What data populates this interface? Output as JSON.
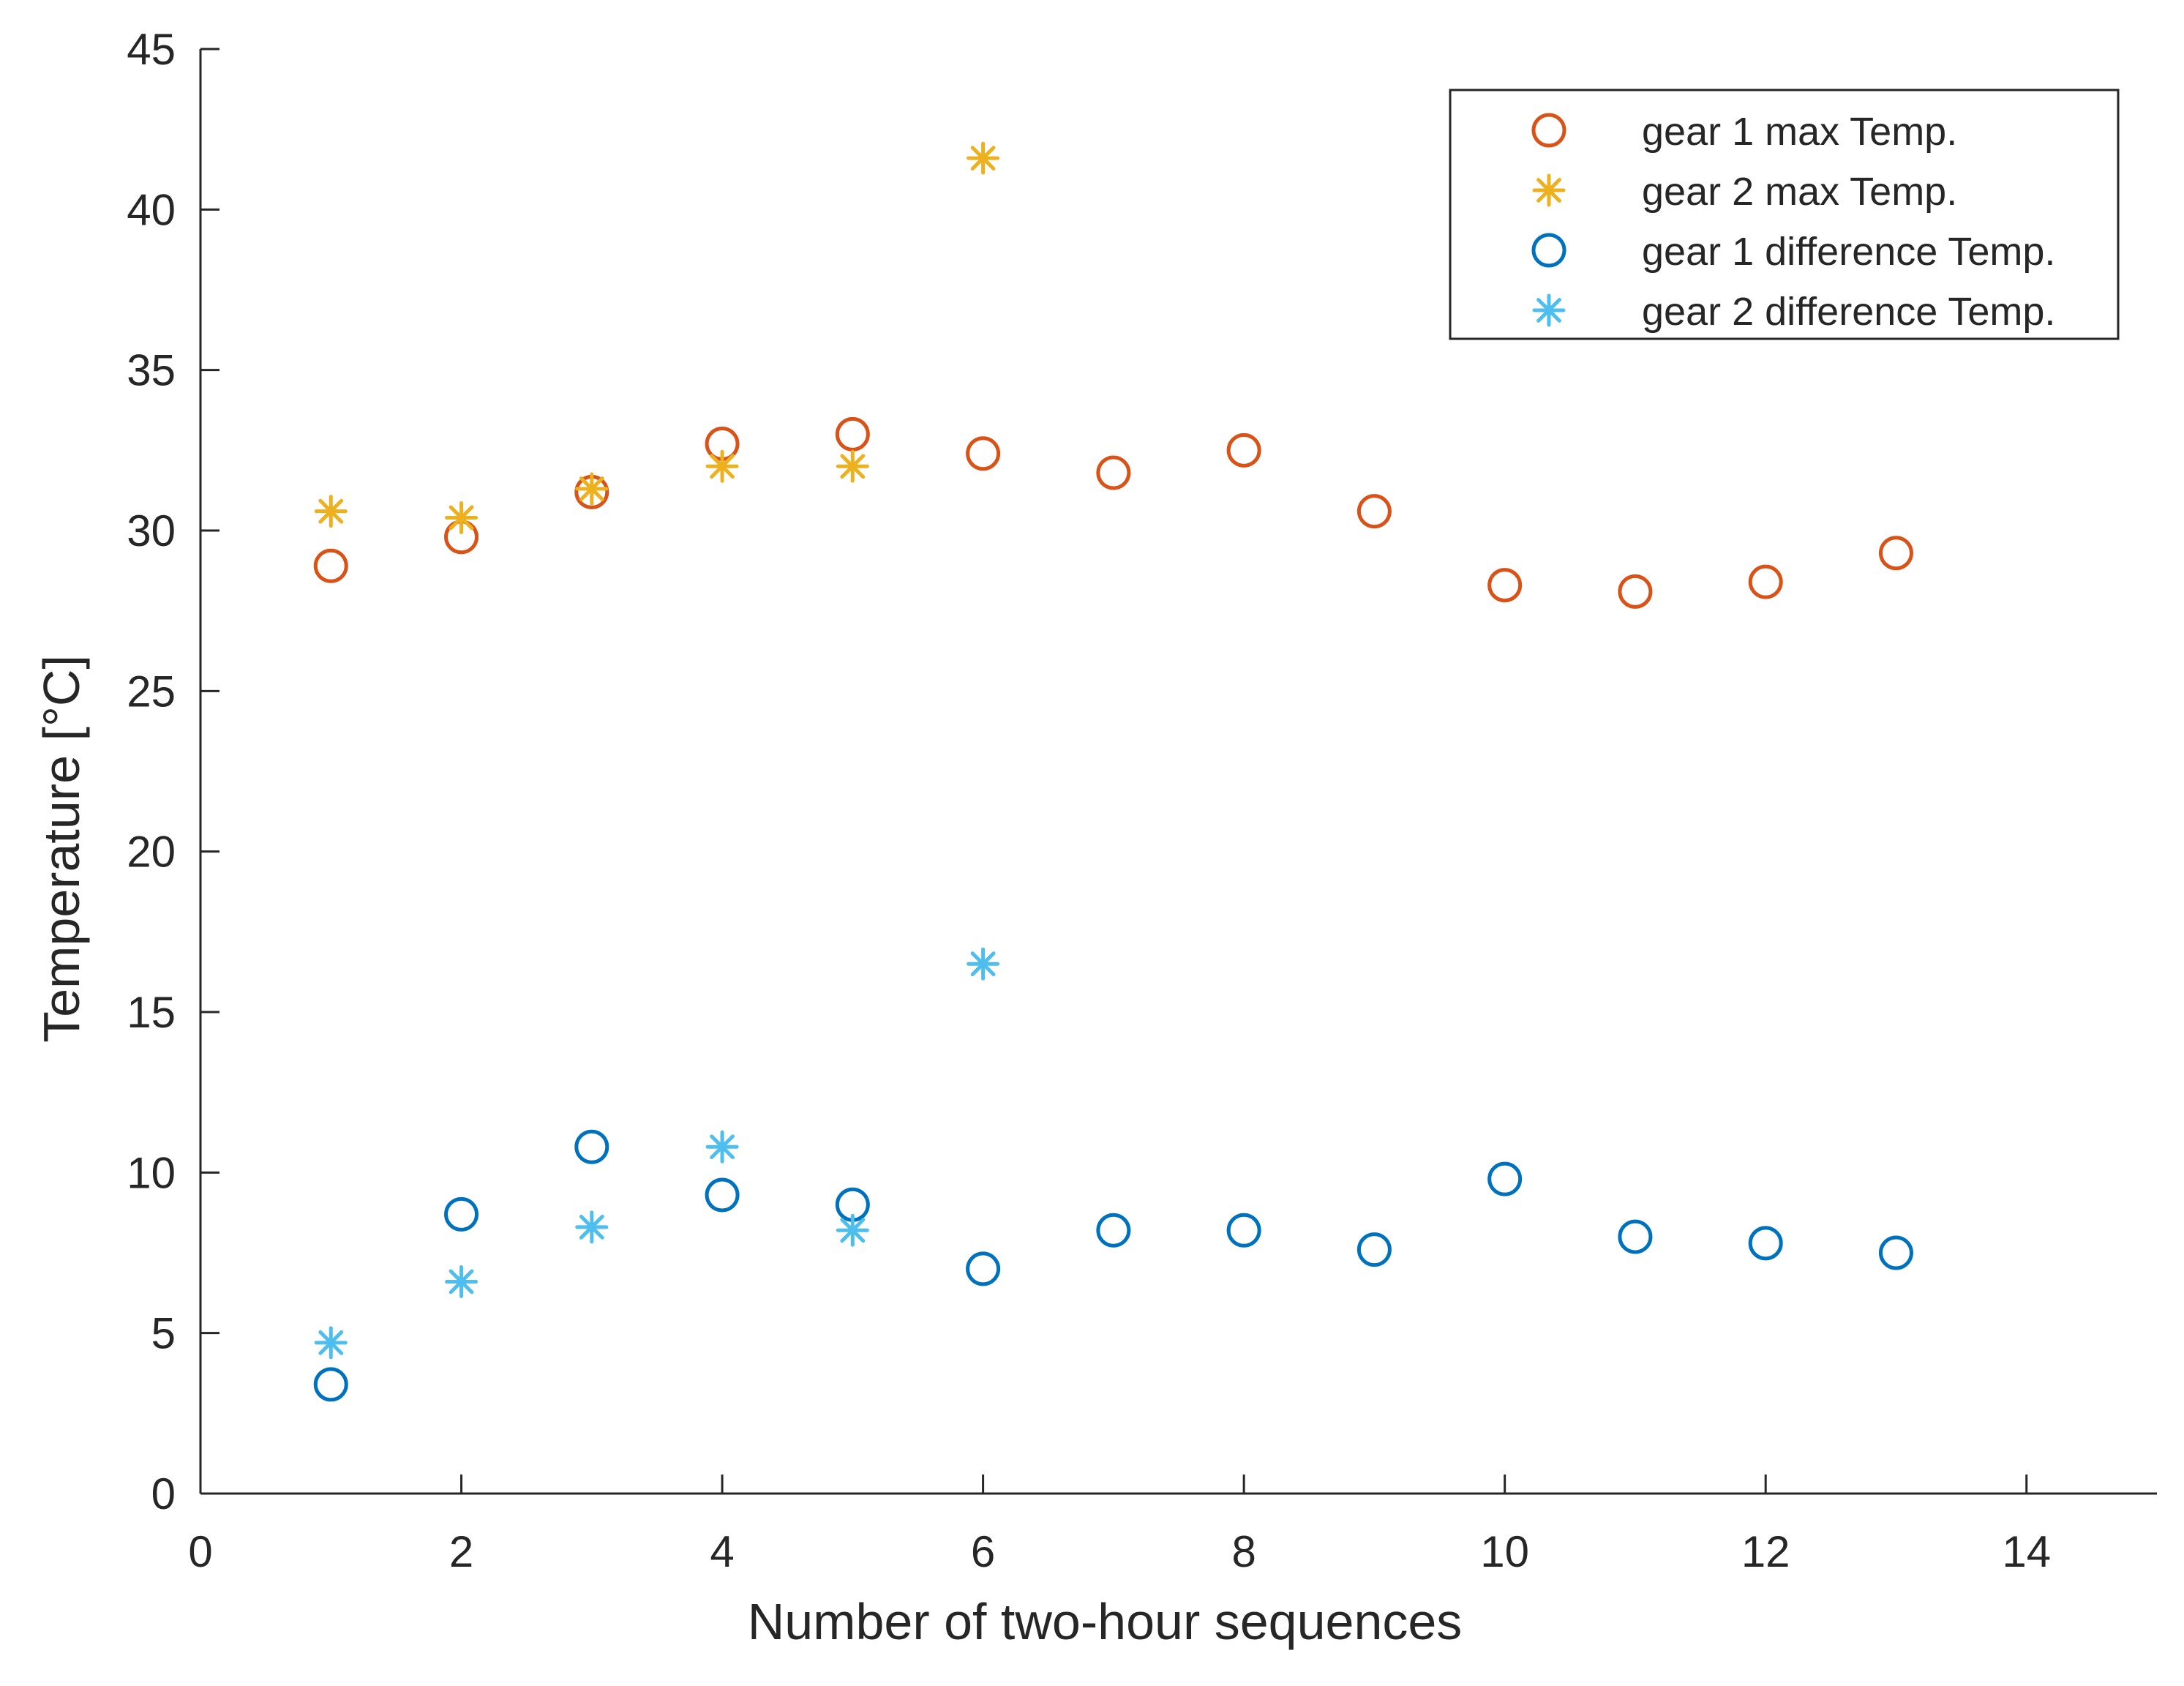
{
  "chart_data": {
    "type": "scatter",
    "title": "",
    "xlabel": "Number of two-hour sequences",
    "ylabel": "Temperature [°C]",
    "xlim": [
      0,
      15
    ],
    "ylim": [
      0,
      45
    ],
    "xticks": [
      0,
      2,
      4,
      6,
      8,
      10,
      12,
      14
    ],
    "yticks": [
      0,
      5,
      10,
      15,
      20,
      25,
      30,
      35,
      40,
      45
    ],
    "grid": false,
    "legend_position": "top-right",
    "series": [
      {
        "name": "gear 1 max Temp.",
        "marker": "circle",
        "color": "#D95319",
        "x": [
          1,
          2,
          3,
          4,
          5,
          6,
          7,
          8,
          9,
          10,
          11,
          12,
          13
        ],
        "y": [
          28.9,
          29.8,
          31.2,
          32.7,
          33.0,
          32.4,
          31.8,
          32.5,
          30.6,
          28.3,
          28.1,
          28.4,
          29.3
        ]
      },
      {
        "name": "gear 2 max Temp.",
        "marker": "asterisk",
        "color": "#EDB120",
        "x": [
          1,
          2,
          3,
          4,
          5,
          6
        ],
        "y": [
          30.6,
          30.4,
          31.3,
          32.0,
          32.0,
          41.6
        ]
      },
      {
        "name": "gear 1 difference Temp.",
        "marker": "circle",
        "color": "#0072BD",
        "x": [
          1,
          2,
          3,
          4,
          5,
          6,
          7,
          8,
          9,
          10,
          11,
          12,
          13
        ],
        "y": [
          3.4,
          8.7,
          10.8,
          9.3,
          9.0,
          7.0,
          8.2,
          8.2,
          7.6,
          9.8,
          8.0,
          7.8,
          7.5
        ]
      },
      {
        "name": "gear 2 difference Temp.",
        "marker": "asterisk",
        "color": "#4DBEEE",
        "x": [
          1,
          2,
          3,
          4,
          5,
          6
        ],
        "y": [
          4.7,
          6.6,
          8.3,
          10.8,
          8.2,
          16.5
        ]
      }
    ]
  }
}
